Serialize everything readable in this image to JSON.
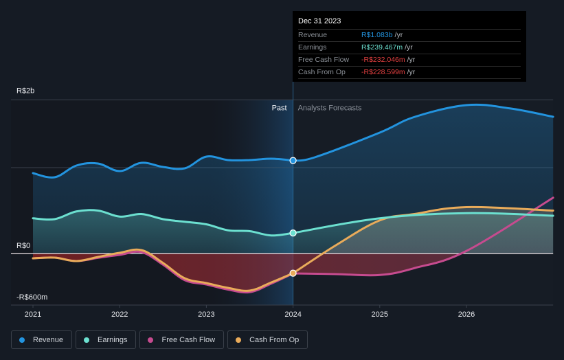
{
  "tooltip": {
    "date": "Dec 31 2023",
    "rows": [
      {
        "label": "Revenue",
        "value": "R$1.083b",
        "unit": "/yr",
        "color": "#2394df"
      },
      {
        "label": "Earnings",
        "value": "R$239.467m",
        "unit": "/yr",
        "color": "#6ce0d0"
      },
      {
        "label": "Free Cash Flow",
        "value": "-R$232.046m",
        "unit": "/yr",
        "color": "#e64141"
      },
      {
        "label": "Cash From Op",
        "value": "-R$228.599m",
        "unit": "/yr",
        "color": "#e64141"
      }
    ]
  },
  "legend": [
    {
      "label": "Revenue",
      "color": "#2394df"
    },
    {
      "label": "Earnings",
      "color": "#6ce0d0"
    },
    {
      "label": "Free Cash Flow",
      "color": "#c64b8f"
    },
    {
      "label": "Cash From Op",
      "color": "#e9ab5a"
    }
  ],
  "chart_data": {
    "type": "line",
    "title": "",
    "xlabel": "",
    "ylabel": "",
    "units": "R$ billions",
    "x_ticks": [
      "2021",
      "2022",
      "2023",
      "2024",
      "2025",
      "2026"
    ],
    "x_range": [
      2021.0,
      2027.0
    ],
    "y_tick_labels": [
      {
        "label": "R$2b",
        "value": 1.79
      },
      {
        "label": "R$0",
        "value": 0
      },
      {
        "label": "-R$600m",
        "value": -0.6
      }
    ],
    "ylim": [
      -0.6,
      1.79
    ],
    "gridlines_at": [
      1.79,
      1.0
    ],
    "zero_line": 0,
    "past_region_label": "Past",
    "forecast_region_label": "Analysts Forecasts",
    "divider_x": 2024.0,
    "highlight_band": [
      2023.0,
      2024.0
    ],
    "legend_position": "bottom",
    "series": [
      {
        "name": "Revenue",
        "color": "#2394df",
        "past": {
          "x": [
            2021.0,
            2021.25,
            2021.5,
            2021.75,
            2022.0,
            2022.25,
            2022.5,
            2022.75,
            2023.0,
            2023.25,
            2023.5,
            2023.75,
            2024.0
          ],
          "y": [
            0.936,
            0.888,
            1.024,
            1.048,
            0.96,
            1.056,
            1.008,
            0.992,
            1.128,
            1.088,
            1.088,
            1.104,
            1.083
          ]
        },
        "forecast": {
          "x": [
            2024.0,
            2024.25,
            2025.0,
            2025.4,
            2026.0,
            2026.5,
            2027.0
          ],
          "y": [
            1.083,
            1.12,
            1.408,
            1.59,
            1.728,
            1.69,
            1.592
          ]
        }
      },
      {
        "name": "Earnings",
        "color": "#6ce0d0",
        "past": {
          "x": [
            2021.0,
            2021.25,
            2021.5,
            2021.75,
            2022.0,
            2022.25,
            2022.5,
            2022.75,
            2023.0,
            2023.25,
            2023.5,
            2023.75,
            2024.0
          ],
          "y": [
            0.41,
            0.4,
            0.49,
            0.5,
            0.43,
            0.46,
            0.4,
            0.37,
            0.34,
            0.27,
            0.26,
            0.21,
            0.239
          ]
        },
        "forecast": {
          "x": [
            2024.0,
            2025.0,
            2026.0,
            2027.0
          ],
          "y": [
            0.239,
            0.41,
            0.47,
            0.44
          ]
        }
      },
      {
        "name": "Free Cash Flow",
        "color": "#c64b8f",
        "past": {
          "x": [
            2021.0,
            2021.25,
            2021.5,
            2021.75,
            2022.0,
            2022.25,
            2022.5,
            2022.75,
            2023.0,
            2023.25,
            2023.5,
            2023.75,
            2024.0
          ],
          "y": [
            -0.056,
            -0.048,
            -0.088,
            -0.05,
            -0.016,
            0.016,
            -0.13,
            -0.31,
            -0.36,
            -0.42,
            -0.45,
            -0.35,
            -0.232
          ]
        },
        "forecast": {
          "x": [
            2024.0,
            2024.5,
            2025.0,
            2025.4,
            2026.0,
            2027.0
          ],
          "y": [
            -0.232,
            -0.24,
            -0.25,
            -0.17,
            0.03,
            0.65
          ]
        }
      },
      {
        "name": "Cash From Op",
        "color": "#e9ab5a",
        "past": {
          "x": [
            2021.0,
            2021.25,
            2021.5,
            2021.75,
            2022.0,
            2022.25,
            2022.5,
            2022.75,
            2023.0,
            2023.25,
            2023.5,
            2023.75,
            2024.0
          ],
          "y": [
            -0.056,
            -0.048,
            -0.088,
            -0.04,
            0.008,
            0.04,
            -0.11,
            -0.288,
            -0.344,
            -0.4,
            -0.432,
            -0.336,
            -0.229
          ]
        },
        "forecast": {
          "x": [
            2024.0,
            2024.5,
            2025.0,
            2025.4,
            2026.0,
            2027.0
          ],
          "y": [
            -0.229,
            0.1,
            0.386,
            0.46,
            0.54,
            0.5
          ]
        }
      }
    ]
  }
}
